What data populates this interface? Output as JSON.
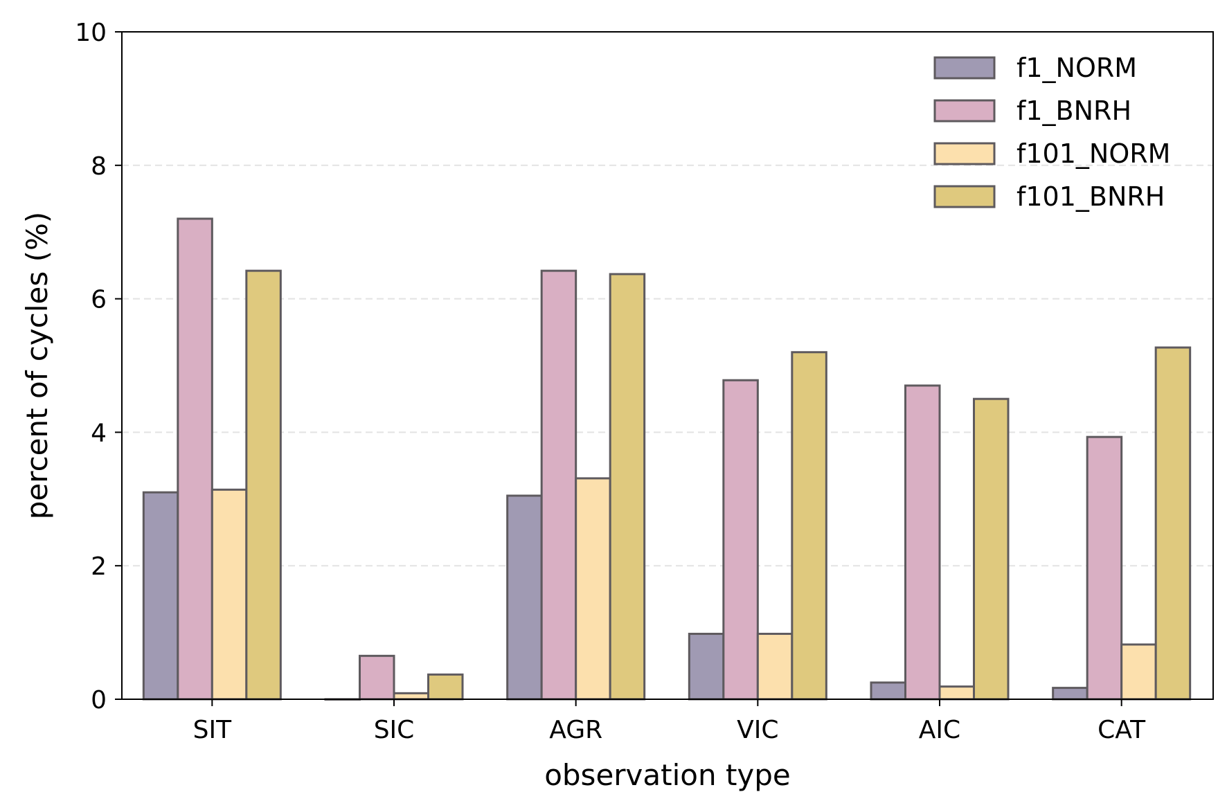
{
  "chart_data": {
    "type": "bar",
    "title": "",
    "xlabel": "observation type",
    "ylabel": "percent of cycles (%)",
    "ylim": [
      0,
      10
    ],
    "yticks": [
      0,
      2,
      4,
      6,
      8,
      10
    ],
    "grid": "horizontal dashed",
    "legend_position": "top-right",
    "categories": [
      "SIT",
      "SIC",
      "AGR",
      "VIC",
      "AIC",
      "CAT"
    ],
    "series": [
      {
        "name": "f1_NORM",
        "color": "#a09ab3",
        "values": [
          3.1,
          0.0,
          3.05,
          0.98,
          0.25,
          0.17
        ]
      },
      {
        "name": "f1_BNRH",
        "color": "#d9afc3",
        "values": [
          7.2,
          0.65,
          6.42,
          4.78,
          4.7,
          3.93
        ]
      },
      {
        "name": "f101_NORM",
        "color": "#fce0ad",
        "values": [
          3.14,
          0.09,
          3.31,
          0.98,
          0.19,
          0.82
        ]
      },
      {
        "name": "f101_BNRH",
        "color": "#dfc97e",
        "values": [
          6.42,
          0.37,
          6.37,
          5.2,
          4.5,
          5.27
        ]
      }
    ]
  }
}
